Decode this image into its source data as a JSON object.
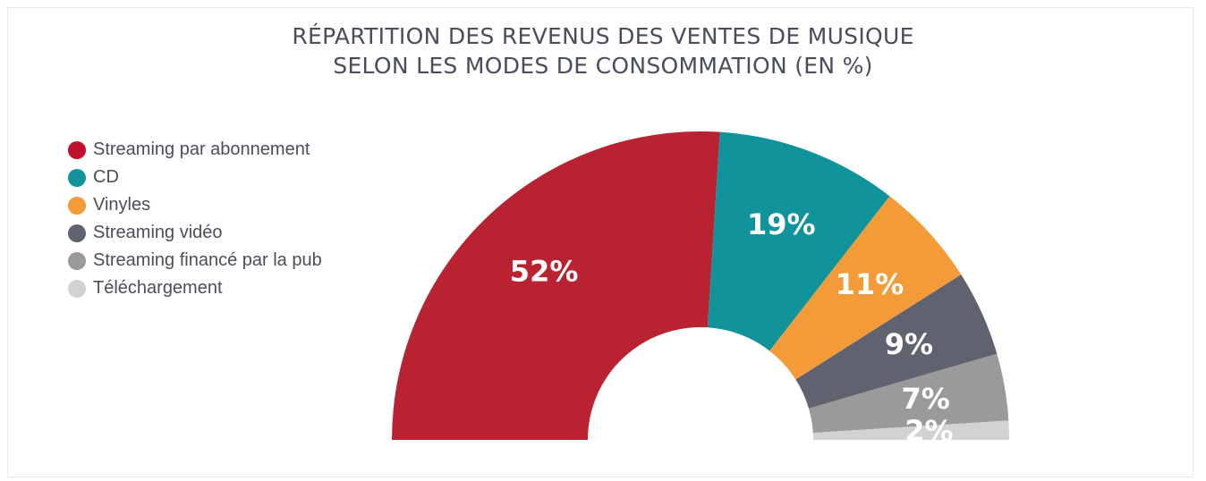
{
  "title": {
    "line1": "RÉPARTITION DES REVENUS DES VENTES DE MUSIQUE",
    "line2": "SELON LES MODES DE CONSOMMATION (EN %)"
  },
  "chart_data": {
    "type": "pie",
    "variant": "half-donut",
    "title": "RÉPARTITION DES REVENUS DES VENTES DE MUSIQUE SELON LES MODES DE CONSOMMATION (EN %)",
    "legend_position": "left",
    "categories": [
      "Streaming par abonnement",
      "CD",
      "Vinyles",
      "Streaming vidéo",
      "Streaming financé par la pub",
      "Téléchargement"
    ],
    "values": [
      52,
      19,
      11,
      9,
      7,
      2
    ],
    "labels": [
      "52%",
      "19%",
      "11%",
      "9%",
      "7%",
      "2%"
    ],
    "colors": [
      "#b92231",
      "#11939c",
      "#f29b38",
      "#606270",
      "#9a9a9a",
      "#d2d2d2"
    ]
  }
}
